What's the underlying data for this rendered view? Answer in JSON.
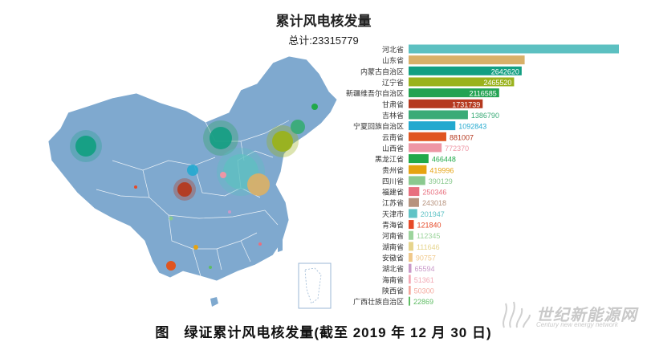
{
  "chart_data": {
    "type": "bar",
    "title": "累计风电核发量",
    "subtitle": "总计:23315779",
    "orientation": "horizontal",
    "categories": [
      "河北省",
      "山东省",
      "内蒙古自治区",
      "辽宁省",
      "新疆维吾尔自治区",
      "甘肃省",
      "吉林省",
      "宁夏回族自治区",
      "云南省",
      "山西省",
      "黑龙江省",
      "贵州省",
      "四川省",
      "福建省",
      "江苏省",
      "天津市",
      "青海省",
      "河南省",
      "湖南省",
      "安徽省",
      "湖北省",
      "海南省",
      "陕西省",
      "广西壮族自治区"
    ],
    "values": [
      4915310,
      2712399,
      2642620,
      2465520,
      2116585,
      1731739,
      1386790,
      1092843,
      881007,
      772370,
      466448,
      419996,
      390129,
      250346,
      243018,
      201947,
      121840,
      112345,
      111646,
      90757,
      65594,
      51361,
      50300,
      22869
    ],
    "colors": [
      "#5cc0c1",
      "#d8b069",
      "#139f82",
      "#9ab21c",
      "#24a353",
      "#b5391f",
      "#3aab77",
      "#23a9cf",
      "#e05520",
      "#ee96a5",
      "#21a94a",
      "#e6a311",
      "#8bc98f",
      "#e8707f",
      "#b7937e",
      "#61c3c6",
      "#e64a28",
      "#9cd49c",
      "#e6d48c",
      "#f0c889",
      "#c99ac9",
      "#f2a8b4",
      "#f4a79c",
      "#5fbd64"
    ],
    "value_label_colors": [
      "#5cc0c1",
      "#d8b069",
      "#ffffff",
      "#ffffff",
      "#ffffff",
      "#ffffff",
      "#3aab77",
      "#23a9cf",
      "#b5391f",
      "#ee96a5",
      "#21a94a",
      "#e6a311",
      "#8bc98f",
      "#e8707f",
      "#b7937e",
      "#61c3c6",
      "#e64a28",
      "#9cd49c",
      "#e6d48c",
      "#f0c889",
      "#c99ac9",
      "#f2a8b4",
      "#f4a79c",
      "#5fbd64"
    ],
    "value_label_inside": [
      true,
      true,
      true,
      true,
      true,
      true,
      false,
      false,
      false,
      false,
      false,
      false,
      false,
      false,
      false,
      false,
      false,
      false,
      false,
      false,
      false,
      false,
      false,
      false
    ],
    "xlim": [
      0,
      4915310
    ],
    "grid": false,
    "legend": "none"
  },
  "map": {
    "land_color": "#7fa9cf",
    "border_color": "#ffffff",
    "bubbles": [
      {
        "name": "新疆",
        "color": "#139f82"
      },
      {
        "name": "内蒙古",
        "color": "#24a353"
      },
      {
        "name": "辽宁",
        "color": "#9ab21c"
      },
      {
        "name": "吉林",
        "color": "#3aab77"
      },
      {
        "name": "黑龙江",
        "color": "#21a94a"
      },
      {
        "name": "河北",
        "color": "#5cc0c1"
      },
      {
        "name": "山东",
        "color": "#d8b069"
      },
      {
        "name": "甘肃",
        "color": "#b5391f"
      },
      {
        "name": "宁夏",
        "color": "#23a9cf"
      },
      {
        "name": "云南",
        "color": "#e05520"
      },
      {
        "name": "山西",
        "color": "#ee96a5"
      },
      {
        "name": "青海",
        "color": "#e64a28"
      },
      {
        "name": "贵州",
        "color": "#e6a311"
      },
      {
        "name": "四川",
        "color": "#8bc98f"
      },
      {
        "name": "广西",
        "color": "#5fbd64"
      },
      {
        "name": "湖北",
        "color": "#c99ac9"
      }
    ]
  },
  "caption": "图　绿证累计风电核发量(截至 2019 年 12 月 30 日)",
  "watermark": {
    "text": "世纪新能源网",
    "sub": "Century new energy network"
  }
}
